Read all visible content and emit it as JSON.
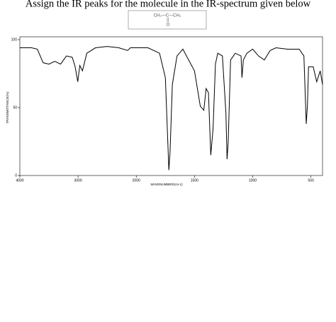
{
  "question": "Assign the IR peaks for the molecule in the IR-spectrum given below",
  "molecule": {
    "formula": "CH₃—C—CH₃",
    "substituent": "O"
  },
  "chart_data": {
    "type": "line",
    "xlabel": "WAVENUMBER(cm-1)",
    "ylabel": "TRANSMITTANCE(%)",
    "color": "#000000",
    "xlim": [
      4000,
      400
    ],
    "ylim": [
      0,
      100
    ],
    "xscale": {
      "break": 2000,
      "factor": 2
    },
    "xticks": [
      4000,
      3000,
      2000,
      1500,
      1000,
      500
    ],
    "yticks": [
      0,
      50,
      100
    ],
    "x": [
      4000,
      3800,
      3700,
      3600,
      3500,
      3400,
      3300,
      3200,
      3100,
      3050,
      3005,
      2970,
      2925,
      2850,
      2700,
      2500,
      2300,
      2150,
      2100,
      2000,
      1900,
      1800,
      1750,
      1720,
      1710,
      1690,
      1650,
      1600,
      1500,
      1450,
      1420,
      1400,
      1380,
      1360,
      1340,
      1320,
      1300,
      1260,
      1230,
      1220,
      1210,
      1190,
      1150,
      1100,
      1092,
      1080,
      1050,
      1000,
      950,
      900,
      850,
      800,
      700,
      600,
      560,
      540,
      530,
      520,
      480,
      450,
      420,
      400
    ],
    "values": [
      94,
      94,
      93,
      83,
      82,
      84,
      82,
      88,
      87,
      80,
      69,
      81,
      77,
      90,
      94,
      95,
      94,
      92,
      94,
      94,
      94,
      90,
      72,
      4,
      17,
      67,
      88,
      93,
      77,
      51,
      48,
      64,
      61,
      15,
      35,
      82,
      90,
      88,
      46,
      12,
      25,
      85,
      90,
      88,
      72,
      85,
      90,
      93,
      88,
      85,
      92,
      94,
      93,
      93,
      88,
      38,
      51,
      80,
      80,
      69,
      77,
      67
    ]
  }
}
